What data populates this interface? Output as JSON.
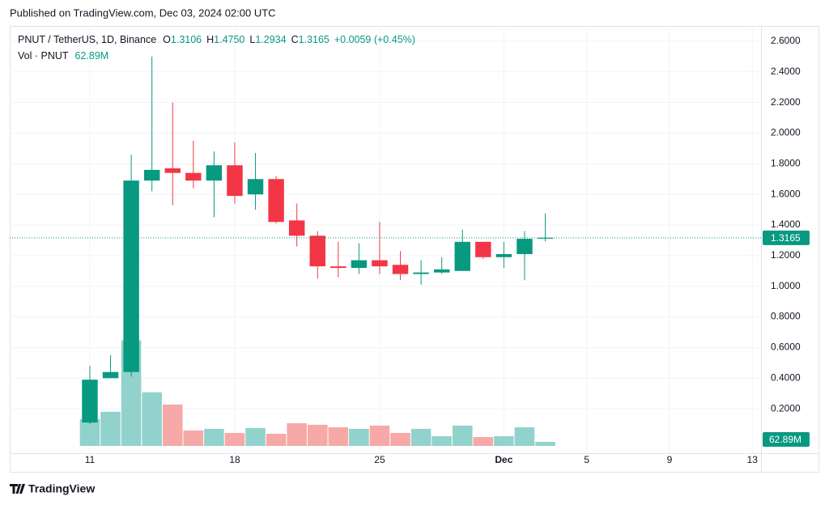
{
  "header": {
    "published": "Published on TradingView.com, Dec 03, 2024 02:00 UTC"
  },
  "chart_data": {
    "type": "candlestick",
    "symbol": "PNUT / TetherUS, 1D, Binance",
    "readout": {
      "o_key": "O",
      "o": "1.3106",
      "h_key": "H",
      "h": "1.4750",
      "l_key": "L",
      "l": "1.2934",
      "c_key": "C",
      "c": "1.3165",
      "change": "+0.0059 (+0.45%)"
    },
    "volume_title": "Vol · PNUT",
    "volume_last_label": "62.89M",
    "x": [
      11,
      12,
      13,
      14,
      15,
      16,
      17,
      18,
      19,
      20,
      21,
      22,
      23,
      24,
      25,
      26,
      27,
      28,
      29,
      30,
      31,
      32,
      33
    ],
    "open": [
      0.11,
      0.4,
      0.44,
      1.69,
      1.77,
      1.74,
      1.69,
      1.79,
      1.6,
      1.7,
      1.43,
      1.33,
      1.13,
      1.12,
      1.17,
      1.14,
      1.08,
      1.09,
      1.1,
      1.29,
      1.19,
      1.21,
      1.3106
    ],
    "high": [
      0.48,
      0.55,
      1.86,
      2.5,
      2.2,
      1.95,
      1.88,
      1.94,
      1.87,
      1.72,
      1.54,
      1.36,
      1.29,
      1.28,
      1.42,
      1.23,
      1.17,
      1.19,
      1.37,
      1.29,
      1.29,
      1.36,
      1.475
    ],
    "low": [
      0.1,
      0.4,
      0.41,
      1.62,
      1.53,
      1.64,
      1.45,
      1.54,
      1.5,
      1.41,
      1.26,
      1.05,
      1.06,
      1.08,
      1.08,
      1.04,
      1.01,
      1.08,
      1.1,
      1.18,
      1.12,
      1.04,
      1.2934
    ],
    "close": [
      0.39,
      0.44,
      1.69,
      1.76,
      1.74,
      1.69,
      1.79,
      1.59,
      1.7,
      1.42,
      1.33,
      1.13,
      1.12,
      1.17,
      1.13,
      1.08,
      1.09,
      1.11,
      1.29,
      1.19,
      1.21,
      1.31,
      1.3165
    ],
    "volume": [
      413,
      528,
      1635,
      830,
      641,
      239,
      264,
      201,
      277,
      189,
      352,
      327,
      289,
      264,
      314,
      201,
      264,
      151,
      314,
      138,
      151,
      289,
      62.89
    ],
    "volume_lim": [
      0,
      6500
    ],
    "up_color": "#089981",
    "down_color": "#f23645",
    "volume_up_color": "#92d2cc",
    "volume_down_color": "#f7a9a7",
    "xlim": [
      7.13,
      43.42
    ],
    "xticks": [
      11,
      18,
      25,
      {
        "value": 31,
        "label": "Dec"
      },
      {
        "value": 35,
        "label": "5"
      },
      {
        "value": 39,
        "label": "9"
      },
      {
        "value": 43,
        "label": "13"
      }
    ],
    "ylim": [
      -0.09,
      2.7
    ],
    "yticks": [
      {
        "value": 0.2,
        "label": "0.2000"
      },
      {
        "value": 0.4,
        "label": "0.4000"
      },
      {
        "value": 0.6,
        "label": "0.6000"
      },
      {
        "value": 0.8,
        "label": "0.8000"
      },
      {
        "value": 1.0,
        "label": "1.0000"
      },
      {
        "value": 1.2,
        "label": "1.2000"
      },
      {
        "value": 1.4,
        "label": "1.4000"
      },
      {
        "value": 1.6,
        "label": "1.6000"
      },
      {
        "value": 1.8,
        "label": "1.8000"
      },
      {
        "value": 2.0,
        "label": "2.0000"
      },
      {
        "value": 2.2,
        "label": "2.2000"
      },
      {
        "value": 2.4,
        "label": "2.4000"
      },
      {
        "value": 2.6,
        "label": "2.6000"
      }
    ],
    "grid": true
  },
  "footer": {
    "brand": "TradingView"
  }
}
